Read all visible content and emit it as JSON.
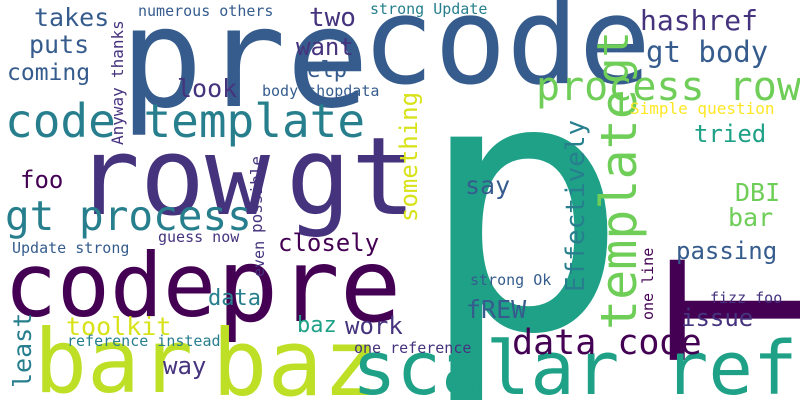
{
  "words": [
    {
      "text": "p",
      "color": "#1fa187",
      "rotated": false
    },
    {
      "text": "pre",
      "color": "#365c8d",
      "rotated": false
    },
    {
      "text": "code",
      "color": "#365c8d",
      "rotated": false
    },
    {
      "text": "row",
      "color": "#46337e",
      "rotated": false
    },
    {
      "text": "gt",
      "color": "#46337e",
      "rotated": false
    },
    {
      "text": "code",
      "color": "#440154",
      "rotated": false
    },
    {
      "text": "pre",
      "color": "#440154",
      "rotated": false
    },
    {
      "text": "T",
      "color": "#440154",
      "rotated": true
    },
    {
      "text": "bar",
      "color": "#bddf26",
      "rotated": false
    },
    {
      "text": "baz",
      "color": "#bddf26",
      "rotated": false
    },
    {
      "text": "scalar ref",
      "color": "#1fa187",
      "rotated": false
    },
    {
      "text": "code template",
      "color": "#277f8e",
      "rotated": false
    },
    {
      "text": "gt process",
      "color": "#277f8e",
      "rotated": false
    },
    {
      "text": "template",
      "color": "#6ece58",
      "rotated": true
    },
    {
      "text": "process row",
      "color": "#6ece58",
      "rotated": false
    },
    {
      "text": "gt",
      "color": "#6ece58",
      "rotated": true
    },
    {
      "text": "gt body",
      "color": "#365c8d",
      "rotated": false
    },
    {
      "text": "data code",
      "color": "#440154",
      "rotated": false
    },
    {
      "text": "hashref",
      "color": "#46337e",
      "rotated": false
    },
    {
      "text": "takes",
      "color": "#365c8d",
      "rotated": false
    },
    {
      "text": "two",
      "color": "#46337e",
      "rotated": false
    },
    {
      "text": "puts",
      "color": "#365c8d",
      "rotated": false
    },
    {
      "text": "want",
      "color": "#46337e",
      "rotated": false
    },
    {
      "text": "coming",
      "color": "#365c8d",
      "rotated": false
    },
    {
      "text": "help",
      "color": "#365c8d",
      "rotated": false
    },
    {
      "text": "look",
      "color": "#46337e",
      "rotated": false
    },
    {
      "text": "numerous others",
      "color": "#365c8d",
      "rotated": false
    },
    {
      "text": "strong Update",
      "color": "#277f8e",
      "rotated": false
    },
    {
      "text": "thanks",
      "color": "#46337e",
      "rotated": true
    },
    {
      "text": "Anyway",
      "color": "#46337e",
      "rotated": true
    },
    {
      "text": "body shopdata",
      "color": "#365c8d",
      "rotated": false
    },
    {
      "text": "Simple question",
      "color": "#fde725",
      "rotated": false
    },
    {
      "text": "tried",
      "color": "#1fa187",
      "rotated": false
    },
    {
      "text": "foo",
      "color": "#440154",
      "rotated": false
    },
    {
      "text": "something",
      "color": "#d8e219",
      "rotated": true
    },
    {
      "text": "say",
      "color": "#365c8d",
      "rotated": false
    },
    {
      "text": "Effectively",
      "color": "#277f8e",
      "rotated": true
    },
    {
      "text": "DBI",
      "color": "#6ece58",
      "rotated": false
    },
    {
      "text": "bar",
      "color": "#6ece58",
      "rotated": false
    },
    {
      "text": "possible",
      "color": "#46337e",
      "rotated": true
    },
    {
      "text": "closely",
      "color": "#440154",
      "rotated": false
    },
    {
      "text": "guess now",
      "color": "#46337e",
      "rotated": false
    },
    {
      "text": "Update strong",
      "color": "#365c8d",
      "rotated": false
    },
    {
      "text": "even",
      "color": "#46337e",
      "rotated": true
    },
    {
      "text": "passing",
      "color": "#365c8d",
      "rotated": false
    },
    {
      "text": "strong Ok",
      "color": "#365c8d",
      "rotated": false
    },
    {
      "text": "data",
      "color": "#277f8e",
      "rotated": false
    },
    {
      "text": "least",
      "color": "#277f8e",
      "rotated": true
    },
    {
      "text": "toolkit",
      "color": "#d8e219",
      "rotated": false
    },
    {
      "text": "baz",
      "color": "#1fa187",
      "rotated": false
    },
    {
      "text": "work",
      "color": "#46337e",
      "rotated": false
    },
    {
      "text": "fREW",
      "color": "#365c8d",
      "rotated": false
    },
    {
      "text": "one line",
      "color": "#440154",
      "rotated": true
    },
    {
      "text": "fizz foo",
      "color": "#46337e",
      "rotated": false
    },
    {
      "text": "issue",
      "color": "#46337e",
      "rotated": false
    },
    {
      "text": "reference instead",
      "color": "#277f8e",
      "rotated": false
    },
    {
      "text": "one reference",
      "color": "#46337e",
      "rotated": false
    },
    {
      "text": "way",
      "color": "#46337e",
      "rotated": false
    }
  ]
}
